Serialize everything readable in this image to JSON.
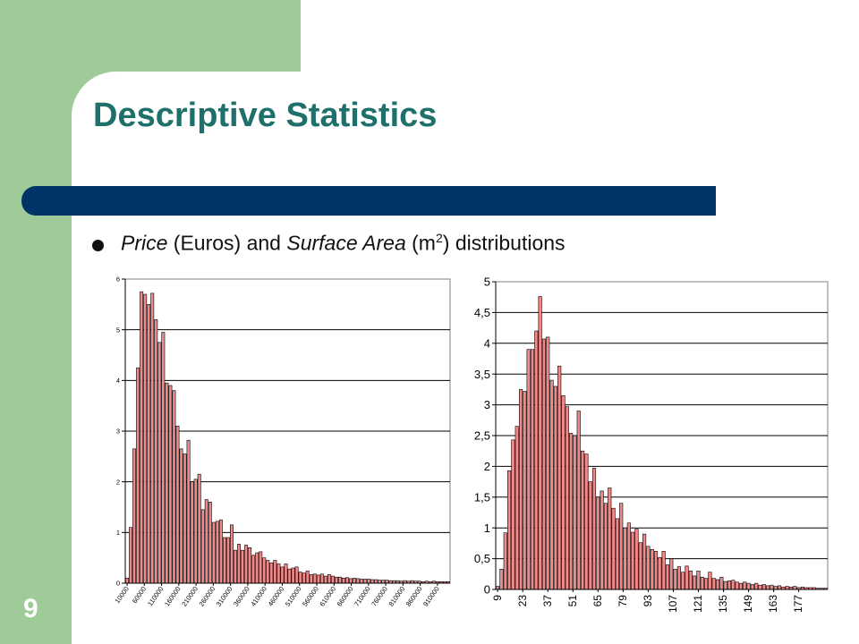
{
  "slide": {
    "title": "Descriptive Statistics",
    "page_number": "9",
    "bullet": {
      "part1": "Price",
      "part2": " (Euros) and ",
      "part3": "Surface Area",
      "part4": " (m",
      "sup": "2",
      "part5": ") distributions"
    },
    "colors": {
      "green_band": "#9fcb98",
      "title_bar": "#003466",
      "title_text": "#1f6f6a",
      "bar_fill": "#f08a8a",
      "bar_edge": "#000000"
    }
  },
  "chart_data": [
    {
      "type": "bar",
      "ylim": [
        0,
        6
      ],
      "y_ticks": [
        "0",
        "1",
        "2",
        "3",
        "4",
        "5",
        "6"
      ],
      "grid": true,
      "category_labels": [
        "10000",
        "60000",
        "110000",
        "160000",
        "210000",
        "260000",
        "310000",
        "360000",
        "410000",
        "460000",
        "510000",
        "560000",
        "610000",
        "660000",
        "710000",
        "760000",
        "810000",
        "860000",
        "910000"
      ],
      "values": [
        0.1,
        1.1,
        2.65,
        4.25,
        5.75,
        5.7,
        5.5,
        5.72,
        5.2,
        4.75,
        4.95,
        3.95,
        3.9,
        3.8,
        3.1,
        2.65,
        2.55,
        2.82,
        2.0,
        2.05,
        2.15,
        1.45,
        1.65,
        1.6,
        1.2,
        1.22,
        1.25,
        0.9,
        0.9,
        1.15,
        0.65,
        0.77,
        0.65,
        0.75,
        0.7,
        0.55,
        0.6,
        0.62,
        0.5,
        0.45,
        0.4,
        0.45,
        0.38,
        0.32,
        0.38,
        0.28,
        0.3,
        0.32,
        0.22,
        0.2,
        0.24,
        0.17,
        0.18,
        0.16,
        0.18,
        0.14,
        0.17,
        0.14,
        0.12,
        0.12,
        0.1,
        0.11,
        0.09,
        0.1,
        0.09,
        0.08,
        0.08,
        0.08,
        0.07,
        0.07,
        0.06,
        0.06,
        0.06,
        0.05,
        0.05,
        0.05,
        0.04,
        0.05,
        0.04,
        0.05,
        0.04,
        0.04,
        0.03,
        0.04,
        0.03,
        0.04,
        0.03,
        0.03,
        0.03,
        0.03
      ]
    },
    {
      "type": "bar",
      "ylim": [
        0,
        5
      ],
      "y_ticks": [
        "0",
        "0,5",
        "1",
        "1,5",
        "2",
        "2,5",
        "3",
        "3,5",
        "4",
        "4,5",
        "5"
      ],
      "grid": true,
      "category_labels": [
        "9",
        "23",
        "37",
        "51",
        "65",
        "79",
        "93",
        "107",
        "121",
        "135",
        "149",
        "163",
        "177"
      ],
      "values": [
        0.05,
        0.33,
        0.92,
        1.93,
        2.43,
        2.65,
        3.25,
        3.22,
        3.9,
        3.9,
        4.2,
        4.76,
        4.07,
        4.1,
        3.4,
        3.3,
        3.63,
        3.15,
        2.97,
        2.54,
        2.5,
        2.9,
        2.25,
        2.2,
        1.75,
        1.97,
        1.5,
        1.6,
        1.4,
        1.65,
        1.32,
        1.15,
        1.4,
        1.0,
        1.08,
        0.93,
        0.98,
        0.76,
        0.9,
        0.7,
        0.65,
        0.62,
        0.52,
        0.62,
        0.4,
        0.5,
        0.33,
        0.37,
        0.28,
        0.38,
        0.3,
        0.22,
        0.3,
        0.2,
        0.18,
        0.28,
        0.18,
        0.16,
        0.2,
        0.13,
        0.14,
        0.15,
        0.12,
        0.1,
        0.12,
        0.1,
        0.08,
        0.1,
        0.07,
        0.08,
        0.06,
        0.07,
        0.05,
        0.06,
        0.04,
        0.05,
        0.04,
        0.05,
        0.03,
        0.04,
        0.03,
        0.03,
        0.03,
        0.02,
        0.02,
        0.02
      ]
    }
  ]
}
